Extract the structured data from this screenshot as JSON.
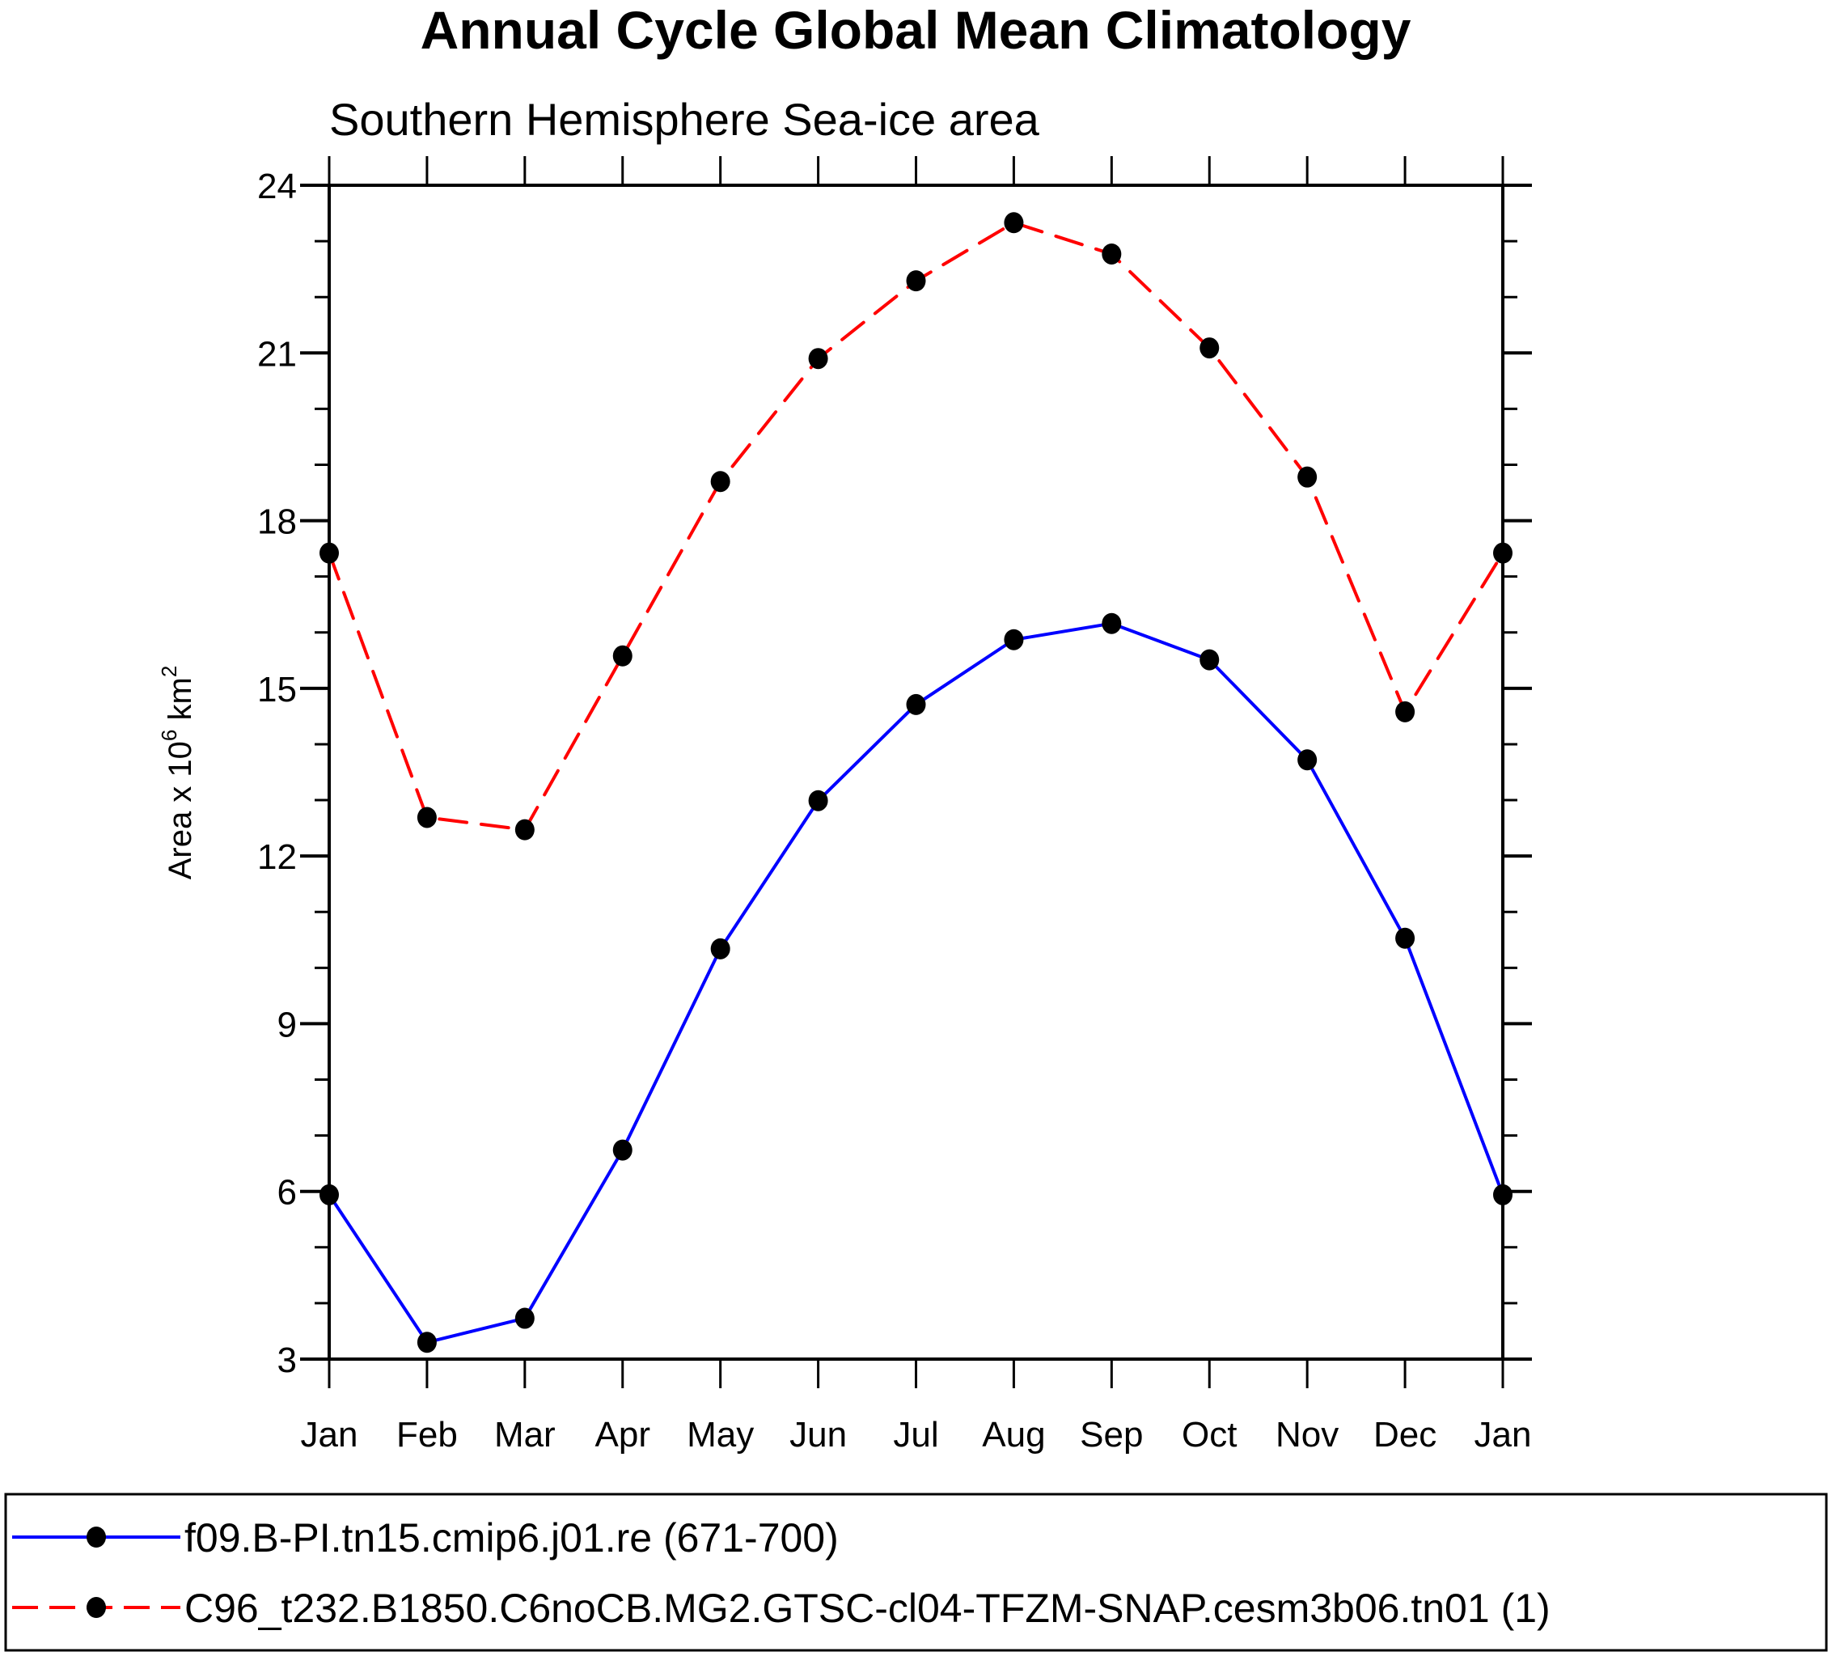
{
  "chart_data": {
    "type": "line",
    "title": "Annual Cycle Global Mean Climatology",
    "subtitle": "Southern Hemisphere Sea-ice area",
    "xlabel": "",
    "ylabel": "Area x 10",
    "ylabel_superscript": "6",
    "ylabel_unit": " km",
    "ylabel_unit_superscript": "2",
    "categories": [
      "Jan",
      "Feb",
      "Mar",
      "Apr",
      "May",
      "Jun",
      "Jul",
      "Aug",
      "Sep",
      "Oct",
      "Nov",
      "Dec",
      "Jan"
    ],
    "ylim": [
      3,
      24
    ],
    "yticks": [
      3,
      6,
      9,
      12,
      15,
      18,
      21,
      24
    ],
    "yminor_step": 1,
    "grid": false,
    "legend_position": "bottom",
    "series": [
      {
        "name": "f09.B-PI.tn15.cmip6.j01.re (671-700)",
        "color": "#0000ff",
        "line_style": "solid",
        "marker": "filled-circle",
        "marker_color": "#000000",
        "values": [
          5.94,
          3.3,
          3.73,
          6.74,
          10.34,
          12.99,
          14.71,
          15.87,
          16.16,
          15.51,
          13.72,
          10.53,
          5.94
        ]
      },
      {
        "name": "C96_t232.B1850.C6noCB.MG2.GTSC-cl04-TFZM-SNAP.cesm3b06.tn01 (1)",
        "color": "#ff0000",
        "line_style": "dashed",
        "marker": "filled-circle",
        "marker_color": "#000000",
        "values": [
          17.42,
          12.69,
          12.47,
          15.58,
          18.7,
          20.9,
          22.29,
          23.33,
          22.77,
          21.09,
          18.78,
          14.58,
          17.42
        ]
      }
    ]
  }
}
